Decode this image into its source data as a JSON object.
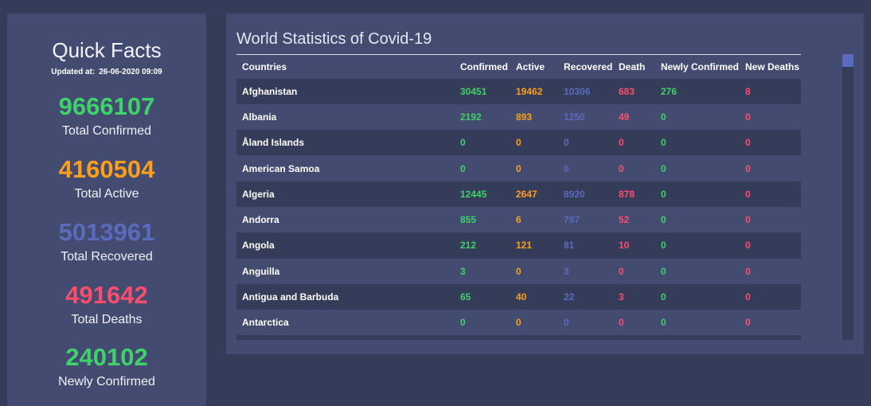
{
  "sidebar": {
    "title": "Quick Facts",
    "updated_label": "Updated at:",
    "updated_value": "26-06-2020 09:09",
    "facts": [
      {
        "value": "9666107",
        "label": "Total Confirmed",
        "color": "#3fd26a"
      },
      {
        "value": "4160504",
        "label": "Total Active",
        "color": "#ff9f1c"
      },
      {
        "value": "5013961",
        "label": "Total Recovered",
        "color": "#5a6bbd"
      },
      {
        "value": "491642",
        "label": "Total Deaths",
        "color": "#ff4d6d"
      },
      {
        "value": "240102",
        "label": "Newly Confirmed",
        "color": "#3fd26a"
      }
    ]
  },
  "panel": {
    "title": "World Statistics of Covid-19",
    "columns": [
      "Countries",
      "Confirmed",
      "Active",
      "Recovered",
      "Death",
      "Newly Confirmed",
      "New Deaths"
    ],
    "rows": [
      [
        "Afghanistan",
        "30451",
        "19462",
        "10306",
        "683",
        "276",
        "8"
      ],
      [
        "Albania",
        "2192",
        "893",
        "1250",
        "49",
        "0",
        "0"
      ],
      [
        "Åland Islands",
        "0",
        "0",
        "0",
        "0",
        "0",
        "0"
      ],
      [
        "American Samoa",
        "0",
        "0",
        "0",
        "0",
        "0",
        "0"
      ],
      [
        "Algeria",
        "12445",
        "2647",
        "8920",
        "878",
        "0",
        "0"
      ],
      [
        "Andorra",
        "855",
        "6",
        "797",
        "52",
        "0",
        "0"
      ],
      [
        "Angola",
        "212",
        "121",
        "81",
        "10",
        "0",
        "0"
      ],
      [
        "Anguilla",
        "3",
        "0",
        "3",
        "0",
        "0",
        "0"
      ],
      [
        "Antigua and Barbuda",
        "65",
        "40",
        "22",
        "3",
        "0",
        "0"
      ],
      [
        "Antarctica",
        "0",
        "0",
        "0",
        "0",
        "0",
        "0"
      ]
    ]
  }
}
